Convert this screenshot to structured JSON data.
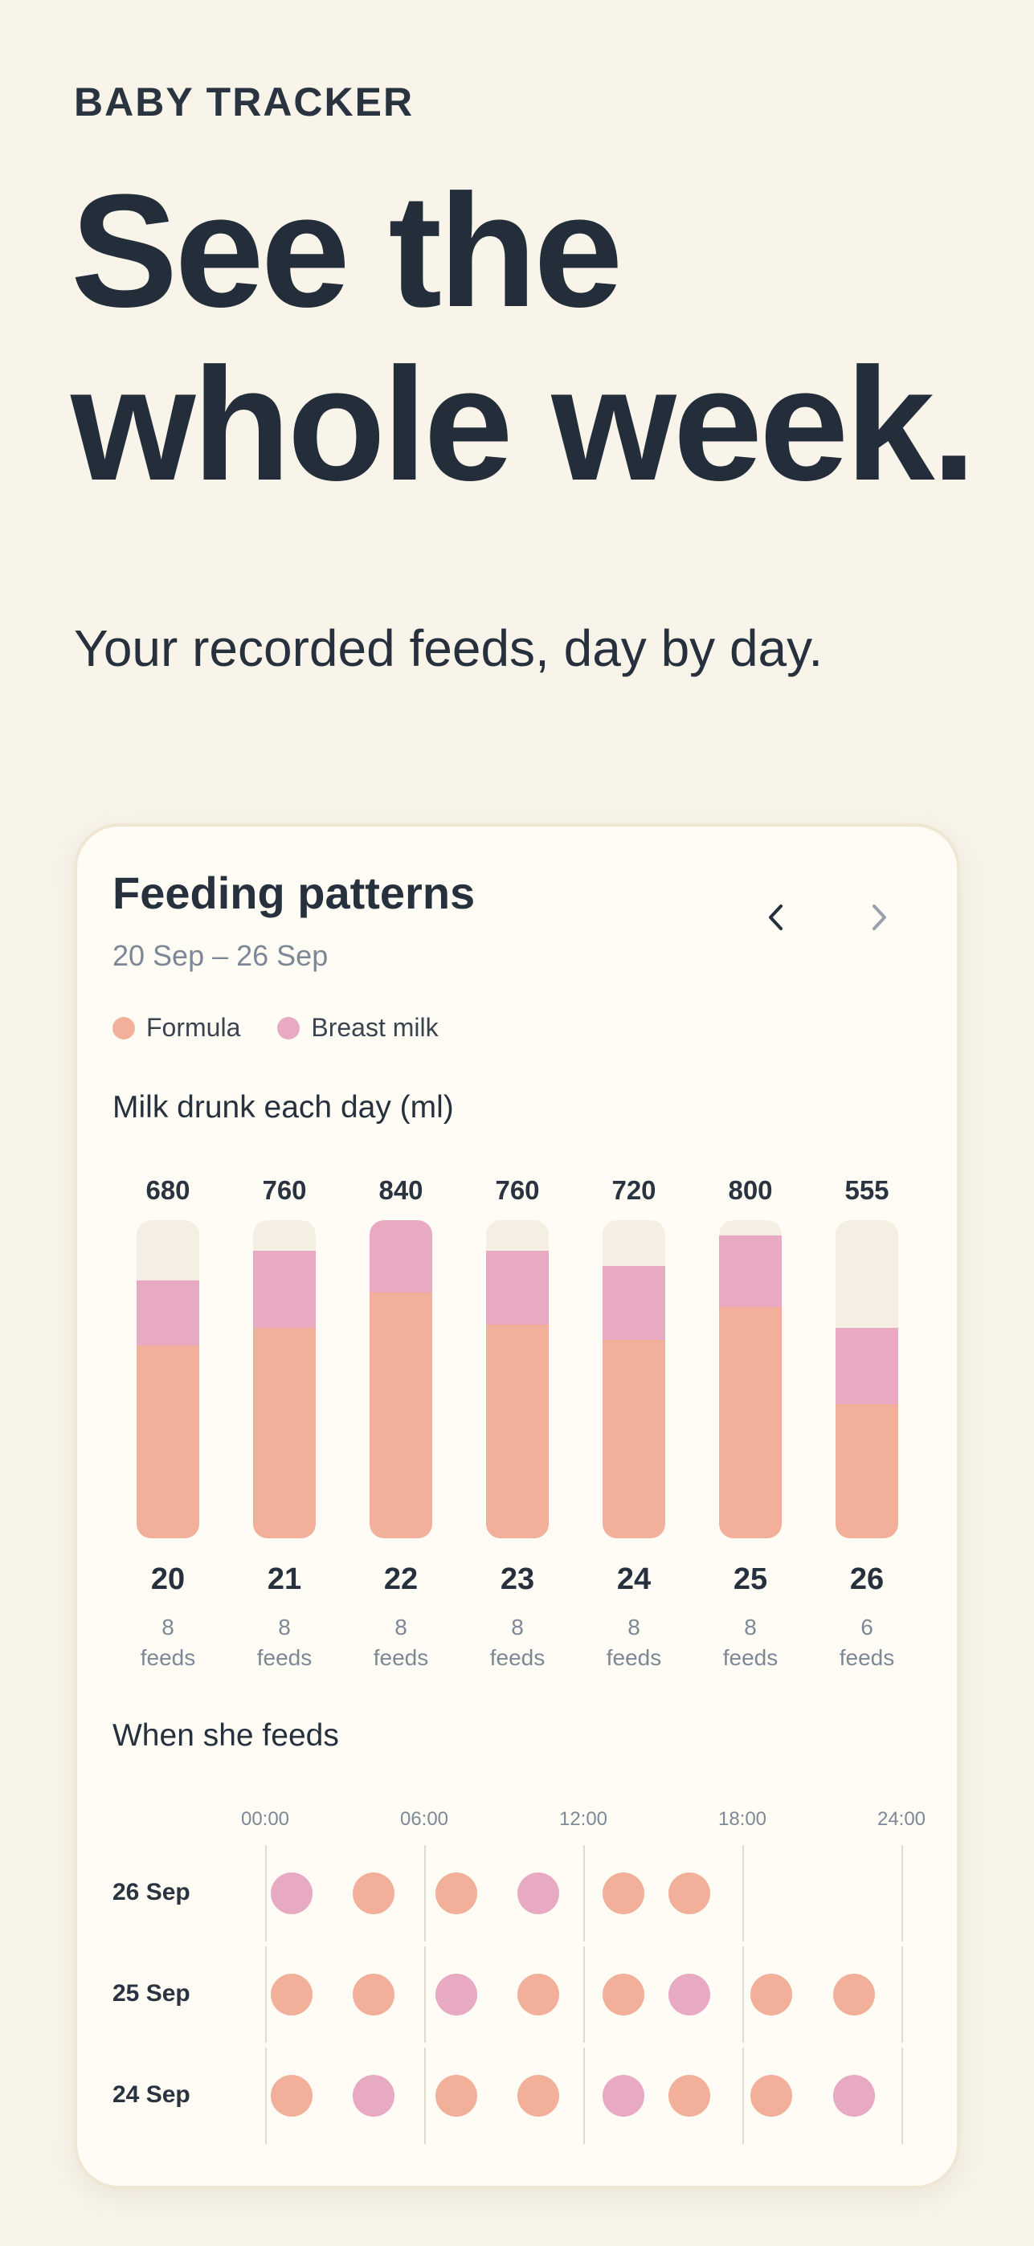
{
  "app": {
    "eyebrow": "BABY TRACKER"
  },
  "hero": {
    "line1": "See the",
    "line2": "whole week.",
    "subtitle": "Your recorded feeds, day by day."
  },
  "card": {
    "title": "Feeding patterns",
    "range": "20 Sep – 26 Sep",
    "nav": {
      "prev_icon": "chevron-left-icon",
      "next_icon": "chevron-right-icon"
    },
    "legend": [
      {
        "label": "Formula",
        "color": "#f2b09a"
      },
      {
        "label": "Breast milk",
        "color": "#e7aac2"
      }
    ],
    "daily_title": "Milk drunk each day (ml)",
    "timeline_title": "When she feeds"
  },
  "chart_data": [
    {
      "type": "bar",
      "title": "Milk drunk each day (ml)",
      "categories": [
        "20",
        "21",
        "22",
        "23",
        "24",
        "25",
        "26"
      ],
      "totals": [
        "680",
        "760",
        "840",
        "760",
        "720",
        "800",
        "555"
      ],
      "feeds_count": [
        "8",
        "8",
        "8",
        "8",
        "8",
        "8",
        "6"
      ],
      "feeds_unit": "feeds",
      "ylim": [
        0,
        840
      ],
      "series": [
        {
          "name": "Formula",
          "color": "#f2b09a",
          "values": [
            510,
            555,
            650,
            565,
            525,
            610,
            355
          ]
        },
        {
          "name": "Breast milk",
          "color": "#e7aac2",
          "values": [
            170,
            205,
            190,
            195,
            195,
            190,
            200
          ]
        }
      ]
    },
    {
      "type": "scatter",
      "title": "When she feeds",
      "x_ticks": [
        "00:00",
        "06:00",
        "12:00",
        "18:00",
        "24:00"
      ],
      "xlim": [
        0,
        24
      ],
      "rows": [
        {
          "label": "26 Sep",
          "feeds": [
            {
              "h": 1.0,
              "t": "Breast milk"
            },
            {
              "h": 4.1,
              "t": "Formula"
            },
            {
              "h": 7.2,
              "t": "Formula"
            },
            {
              "h": 10.3,
              "t": "Breast milk"
            },
            {
              "h": 13.5,
              "t": "Formula"
            },
            {
              "h": 16.0,
              "t": "Formula"
            }
          ]
        },
        {
          "label": "25 Sep",
          "feeds": [
            {
              "h": 1.0,
              "t": "Formula"
            },
            {
              "h": 4.1,
              "t": "Formula"
            },
            {
              "h": 7.2,
              "t": "Breast milk"
            },
            {
              "h": 10.3,
              "t": "Formula"
            },
            {
              "h": 13.5,
              "t": "Formula"
            },
            {
              "h": 16.0,
              "t": "Breast milk"
            },
            {
              "h": 19.1,
              "t": "Formula"
            },
            {
              "h": 22.2,
              "t": "Formula"
            }
          ]
        },
        {
          "label": "24 Sep",
          "feeds": [
            {
              "h": 1.0,
              "t": "Formula"
            },
            {
              "h": 4.1,
              "t": "Breast milk"
            },
            {
              "h": 7.2,
              "t": "Formula"
            },
            {
              "h": 10.3,
              "t": "Formula"
            },
            {
              "h": 13.5,
              "t": "Breast milk"
            },
            {
              "h": 16.0,
              "t": "Formula"
            },
            {
              "h": 19.1,
              "t": "Formula"
            },
            {
              "h": 22.2,
              "t": "Breast milk"
            }
          ]
        }
      ]
    }
  ]
}
